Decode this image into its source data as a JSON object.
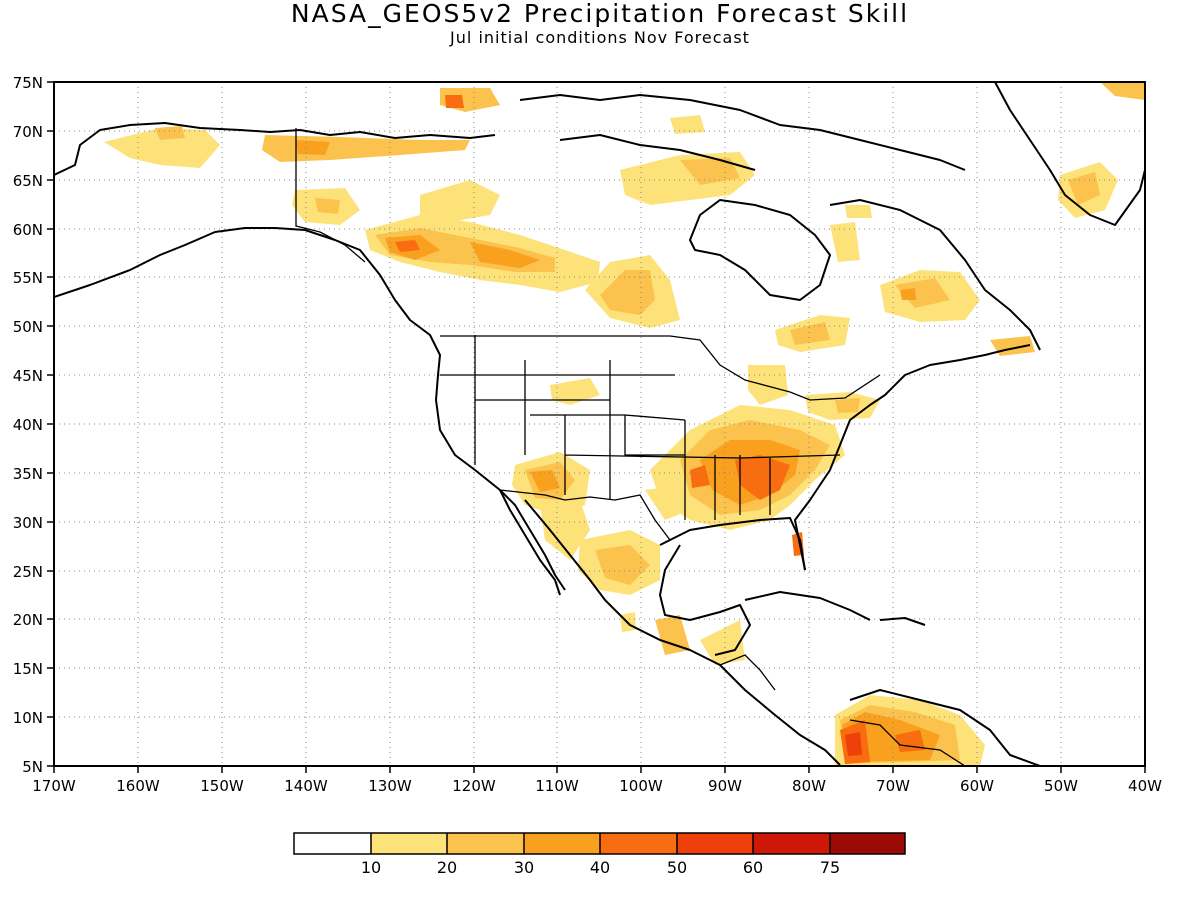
{
  "header": {
    "title": "NASA_GEOS5v2 Precipitation Forecast Skill",
    "subtitle": "Jul initial conditions   Nov Forecast"
  },
  "map": {
    "lon_range": [
      -170,
      -40
    ],
    "lat_range": [
      5,
      75
    ],
    "lat_labels": [
      "75N",
      "70N",
      "65N",
      "60N",
      "55N",
      "50N",
      "45N",
      "40N",
      "35N",
      "30N",
      "25N",
      "20N",
      "15N",
      "10N",
      "5N"
    ],
    "lon_labels": [
      "170W",
      "160W",
      "150W",
      "140W",
      "130W",
      "120W",
      "110W",
      "100W",
      "90W",
      "80W",
      "70W",
      "60W",
      "50W",
      "40W"
    ],
    "gridlines": "dotted"
  },
  "colorbar": {
    "labels": [
      "10",
      "20",
      "30",
      "40",
      "50",
      "60",
      "75"
    ],
    "colors": [
      "#ffffff",
      "#fde27a",
      "#fbc24e",
      "#f9a01e",
      "#f76d0f",
      "#ef3f0c",
      "#cf1708",
      "#9b0a05"
    ]
  },
  "skill_colors": {
    "light": "#fde27a",
    "mid": "#fbc24e",
    "orange": "#f9a01e",
    "red_orange": "#f76d0f",
    "red": "#ef3f0c",
    "dark_red": "#cf1708"
  }
}
